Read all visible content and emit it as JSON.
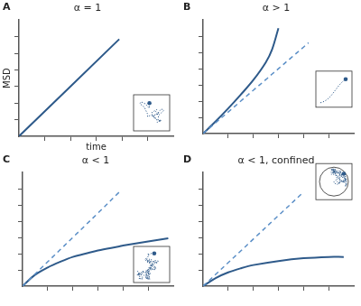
{
  "chart_data": [
    {
      "panel": "A",
      "type": "line",
      "title": "α = 1",
      "xlabel": "time",
      "ylabel": "MSD",
      "x": [
        0,
        3.9
      ],
      "series": [
        {
          "color": "#2e5a8a",
          "line_style": "solid",
          "values": [
            0,
            5.85
          ]
        }
      ],
      "xlim": [
        0,
        6
      ],
      "ylim": [
        0,
        7
      ],
      "xticks": [
        1,
        2,
        3,
        4,
        5
      ],
      "yticks": [
        1,
        2,
        3,
        4,
        5,
        6
      ],
      "grid": false,
      "tick_labels": false
    },
    {
      "panel": "B",
      "type": "line",
      "title": "α > 1",
      "x": [
        0,
        0.5,
        1,
        1.5,
        2,
        2.5,
        2.75,
        3,
        3.5,
        4,
        4.2
      ],
      "series": [
        {
          "color": "#5b8fc7",
          "line_style": "dashed",
          "values": [
            0,
            0.67,
            1.33,
            2,
            2.67,
            3.33,
            3.67,
            4,
            4.67,
            5.33,
            5.6
          ]
        },
        {
          "color": "#2e5a8a",
          "line_style": "solid",
          "values": [
            0,
            0.75,
            1.55,
            2.4,
            3.3,
            4.4,
            5.2,
            6.5,
            null,
            null,
            null
          ]
        }
      ],
      "xlim": [
        0,
        6
      ],
      "ylim": [
        0,
        7
      ],
      "xticks": [
        1,
        2,
        3,
        4,
        5
      ],
      "yticks": [
        1,
        2,
        3,
        4,
        5,
        6
      ],
      "grid": false,
      "tick_labels": false
    },
    {
      "panel": "C",
      "type": "line",
      "title": "α < 1",
      "x": [
        0,
        0.5,
        1,
        1.5,
        2,
        2.5,
        3,
        3.85,
        4,
        5,
        5.8
      ],
      "series": [
        {
          "color": "#5b8fc7",
          "line_style": "dashed",
          "values": [
            0,
            0.75,
            1.5,
            2.25,
            3,
            3.75,
            4.5,
            5.8,
            null,
            null,
            null
          ]
        },
        {
          "color": "#2e5a8a",
          "line_style": "solid",
          "values": [
            0,
            0.7,
            1.15,
            1.5,
            1.8,
            2.0,
            2.2,
            2.45,
            2.5,
            2.75,
            2.95
          ]
        }
      ],
      "xlim": [
        0,
        6
      ],
      "ylim": [
        0,
        7
      ],
      "xticks": [
        1,
        2,
        3,
        4,
        5
      ],
      "yticks": [
        1,
        2,
        3,
        4,
        5,
        6
      ],
      "grid": false,
      "tick_labels": false
    },
    {
      "panel": "D",
      "type": "line",
      "title": "α < 1, confined",
      "x": [
        0,
        0.5,
        1,
        1.5,
        2,
        3,
        4,
        5,
        5.6
      ],
      "series": [
        {
          "color": "#5b8fc7",
          "line_style": "dashed",
          "values": [
            0,
            0.72,
            1.45,
            2.17,
            2.9,
            4.35,
            5.8,
            null,
            null
          ]
        },
        {
          "color": "#2e5a8a",
          "line_style": "solid",
          "values": [
            0,
            0.5,
            0.85,
            1.1,
            1.3,
            1.55,
            1.72,
            1.8,
            1.8
          ]
        }
      ],
      "xlim": [
        0,
        6
      ],
      "ylim": [
        0,
        7
      ],
      "xticks": [
        1,
        2,
        3,
        4,
        5
      ],
      "yticks": [
        1,
        2,
        3,
        4,
        5,
        6
      ],
      "grid": false,
      "tick_labels": false
    }
  ]
}
